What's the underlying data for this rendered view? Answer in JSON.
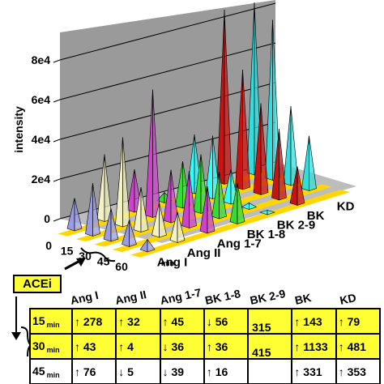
{
  "chart_data": {
    "type": "bar",
    "style": "3d-cones",
    "ylabel": "intensity",
    "y_tick_labels": [
      "0",
      "2e4",
      "4e4",
      "6e4",
      "8e4"
    ],
    "ylim": [
      0,
      80000
    ],
    "x_tick_labels": [
      "0",
      "15",
      "30",
      "45",
      "60"
    ],
    "x_unit": "min",
    "categories": [
      0,
      15,
      30,
      45,
      60
    ],
    "series": [
      {
        "name": "Ang I",
        "color": "#9a9ae6",
        "values": [
          15000,
          25000,
          15000,
          12000,
          5000
        ]
      },
      {
        "name": "Ang II",
        "color": "#f2f2c2",
        "values": [
          32000,
          43000,
          21000,
          16000,
          14000
        ]
      },
      {
        "name": "Ang 1-7",
        "color": "#cc44cc",
        "values": [
          20000,
          62000,
          25000,
          27000,
          22000
        ]
      },
      {
        "name": "BK 1-8",
        "color": "#33dd33",
        "values": [
          4000,
          22000,
          28000,
          22000,
          19000
        ]
      },
      {
        "name": "BK 2-9",
        "color": "#33ffff",
        "values": [
          28000,
          30000,
          16000,
          2000,
          1000
        ]
      },
      {
        "name": "BK",
        "color": "#cc1111",
        "values": [
          85000,
          58000,
          44000,
          34000,
          18000
        ]
      },
      {
        "name": "KD",
        "color": "#33dddd",
        "values": [
          84000,
          78000,
          38000,
          26000,
          0
        ]
      }
    ],
    "grid": true,
    "floor_color": "#ffd700"
  },
  "acei_label": "ACEi",
  "table": {
    "headers": [
      "Ang I",
      "Ang II",
      "Ang 1-7",
      "BK 1-8",
      "BK 2-9",
      "BK",
      "KD"
    ],
    "rows": [
      {
        "time": "15",
        "unit": "min",
        "cells": [
          "↑ 278",
          "↑ 32",
          "↑ 45",
          "↓ 56",
          "",
          "↑ 143",
          "↑ 79"
        ]
      },
      {
        "time": "30",
        "unit": "min",
        "cells": [
          "↑ 43",
          "↑ 4",
          "↓ 36",
          "↑ 36",
          "",
          "↑ 1133",
          "↑ 481"
        ]
      },
      {
        "time": "45",
        "unit": "min",
        "cells": [
          "↑ 76",
          "↓ 5",
          "↓ 39",
          "↑ 16",
          "",
          "↑ 331",
          "↑ 353"
        ]
      }
    ],
    "bk29_values": [
      "315",
      "415"
    ]
  }
}
